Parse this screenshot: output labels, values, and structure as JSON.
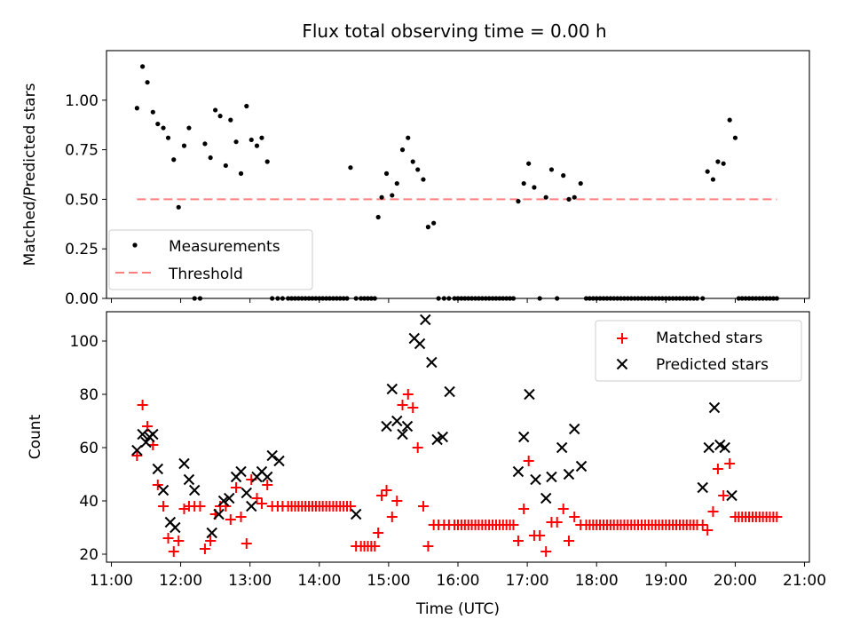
{
  "figure": {
    "title": "Flux total observing time = 0.00 h",
    "xlabel": "Time (UTC)"
  },
  "chart_data": [
    {
      "type": "scatter",
      "ylabel": "Matched/Predicted stars",
      "xlim": [
        10.93,
        21.07
      ],
      "ylim": [
        0.0,
        1.25
      ],
      "yticks": [
        0.0,
        0.25,
        0.5,
        0.75,
        1.0
      ],
      "ytick_labels": [
        "0.00",
        "0.25",
        "0.50",
        "0.75",
        "1.00"
      ],
      "legend": {
        "placement": "lower-left",
        "entries": [
          {
            "label": "Measurements",
            "marker": "dot",
            "color": "#000000"
          },
          {
            "label": "Threshold",
            "marker": "dashed-line",
            "color": "#ff7f7f"
          }
        ]
      },
      "threshold": {
        "value": 0.5,
        "x_start": 11.37,
        "x_end": 20.6
      },
      "measurements": {
        "x": [
          11.37,
          11.45,
          11.52,
          11.6,
          11.67,
          11.75,
          11.82,
          11.9,
          11.97,
          12.05,
          12.12,
          12.2,
          12.28,
          12.35,
          12.43,
          12.5,
          12.57,
          12.65,
          12.72,
          12.8,
          12.87,
          12.95,
          13.02,
          13.1,
          13.17,
          13.25,
          13.32,
          13.4,
          13.47,
          13.55,
          13.6,
          13.65,
          13.7,
          13.75,
          13.8,
          13.85,
          13.9,
          13.95,
          14.0,
          14.05,
          14.1,
          14.15,
          14.2,
          14.25,
          14.3,
          14.35,
          14.4,
          14.45,
          14.53,
          14.6,
          14.65,
          14.7,
          14.75,
          14.8,
          14.85,
          14.9,
          14.97,
          15.05,
          15.12,
          15.2,
          15.28,
          15.35,
          15.42,
          15.5,
          15.57,
          15.65,
          15.72,
          15.8,
          15.87,
          15.95,
          16.0,
          16.05,
          16.1,
          16.15,
          16.2,
          16.25,
          16.3,
          16.35,
          16.4,
          16.45,
          16.5,
          16.55,
          16.6,
          16.65,
          16.7,
          16.75,
          16.8,
          16.87,
          16.95,
          17.02,
          17.1,
          17.18,
          17.27,
          17.35,
          17.43,
          17.52,
          17.6,
          17.68,
          17.77,
          17.85,
          17.9,
          17.95,
          18.0,
          18.05,
          18.1,
          18.15,
          18.2,
          18.25,
          18.3,
          18.35,
          18.4,
          18.45,
          18.5,
          18.55,
          18.6,
          18.65,
          18.7,
          18.75,
          18.8,
          18.85,
          18.9,
          18.95,
          19.0,
          19.05,
          19.1,
          19.15,
          19.2,
          19.25,
          19.3,
          19.35,
          19.4,
          19.45,
          19.53,
          19.6,
          19.68,
          19.75,
          19.83,
          19.92,
          20.0,
          20.05,
          20.1,
          20.15,
          20.2,
          20.25,
          20.3,
          20.35,
          20.4,
          20.45,
          20.5,
          20.55,
          20.6
        ],
        "y": [
          0.96,
          1.17,
          1.09,
          0.94,
          0.88,
          0.86,
          0.81,
          0.7,
          0.46,
          0.77,
          0.86,
          0.0,
          0.0,
          0.78,
          0.71,
          0.95,
          0.92,
          0.67,
          0.9,
          0.79,
          0.63,
          0.97,
          0.8,
          0.77,
          0.81,
          0.69,
          0.0,
          0.0,
          0.0,
          0.0,
          0.0,
          0.0,
          0.0,
          0.0,
          0.0,
          0.0,
          0.0,
          0.0,
          0.0,
          0.0,
          0.0,
          0.0,
          0.0,
          0.0,
          0.0,
          0.0,
          0.0,
          0.66,
          0.0,
          0.0,
          0.0,
          0.0,
          0.0,
          0.0,
          0.41,
          0.51,
          0.63,
          0.52,
          0.58,
          0.75,
          0.81,
          0.69,
          0.65,
          0.6,
          0.36,
          0.38,
          0.0,
          0.0,
          0.0,
          0.0,
          0.0,
          0.0,
          0.0,
          0.0,
          0.0,
          0.0,
          0.0,
          0.0,
          0.0,
          0.0,
          0.0,
          0.0,
          0.0,
          0.0,
          0.0,
          0.0,
          0.0,
          0.49,
          0.58,
          0.68,
          0.56,
          0.0,
          0.51,
          0.65,
          0.0,
          0.62,
          0.5,
          0.51,
          0.58,
          0.0,
          0.0,
          0.0,
          0.0,
          0.0,
          0.0,
          0.0,
          0.0,
          0.0,
          0.0,
          0.0,
          0.0,
          0.0,
          0.0,
          0.0,
          0.0,
          0.0,
          0.0,
          0.0,
          0.0,
          0.0,
          0.0,
          0.0,
          0.0,
          0.0,
          0.0,
          0.0,
          0.0,
          0.0,
          0.0,
          0.0,
          0.0,
          0.0,
          0.0,
          0.64,
          0.6,
          0.69,
          0.68,
          0.9,
          0.81,
          0.0,
          0.0,
          0.0,
          0.0,
          0.0,
          0.0,
          0.0,
          0.0,
          0.0,
          0.0,
          0.0,
          0.0
        ]
      }
    },
    {
      "type": "scatter",
      "ylabel": "Count",
      "xlim": [
        10.93,
        21.07
      ],
      "ylim": [
        17.0,
        111.0
      ],
      "yticks": [
        20,
        40,
        60,
        80,
        100
      ],
      "ytick_labels": [
        "20",
        "40",
        "60",
        "80",
        "100"
      ],
      "xticks": [
        11,
        12,
        13,
        14,
        15,
        16,
        17,
        18,
        19,
        20,
        21
      ],
      "xtick_labels": [
        "11:00",
        "12:00",
        "13:00",
        "14:00",
        "15:00",
        "16:00",
        "17:00",
        "18:00",
        "19:00",
        "20:00",
        "21:00"
      ],
      "legend": {
        "placement": "upper-right",
        "entries": [
          {
            "label": "Matched stars",
            "marker": "plus",
            "color": "#ff0000"
          },
          {
            "label": "Predicted stars",
            "marker": "x",
            "color": "#000000"
          }
        ]
      },
      "matched": {
        "x": [
          11.37,
          11.45,
          11.52,
          11.6,
          11.67,
          11.75,
          11.82,
          11.9,
          11.97,
          12.05,
          12.12,
          12.2,
          12.28,
          12.35,
          12.43,
          12.5,
          12.57,
          12.65,
          12.72,
          12.8,
          12.87,
          12.95,
          13.02,
          13.1,
          13.17,
          13.25,
          13.32,
          13.4,
          13.47,
          13.55,
          13.6,
          13.65,
          13.7,
          13.75,
          13.8,
          13.85,
          13.9,
          13.95,
          14.0,
          14.05,
          14.1,
          14.15,
          14.2,
          14.25,
          14.3,
          14.35,
          14.4,
          14.45,
          14.53,
          14.6,
          14.65,
          14.7,
          14.75,
          14.8,
          14.85,
          14.9,
          14.97,
          15.05,
          15.12,
          15.2,
          15.28,
          15.35,
          15.42,
          15.5,
          15.57,
          15.65,
          15.72,
          15.8,
          15.87,
          15.95,
          16.0,
          16.05,
          16.1,
          16.15,
          16.2,
          16.25,
          16.3,
          16.35,
          16.4,
          16.45,
          16.5,
          16.55,
          16.6,
          16.65,
          16.7,
          16.75,
          16.8,
          16.87,
          16.95,
          17.02,
          17.1,
          17.18,
          17.27,
          17.35,
          17.43,
          17.52,
          17.6,
          17.68,
          17.77,
          17.85,
          17.9,
          17.95,
          18.0,
          18.05,
          18.1,
          18.15,
          18.2,
          18.25,
          18.3,
          18.35,
          18.4,
          18.45,
          18.5,
          18.55,
          18.6,
          18.65,
          18.7,
          18.75,
          18.8,
          18.85,
          18.9,
          18.95,
          19.0,
          19.05,
          19.1,
          19.15,
          19.2,
          19.25,
          19.3,
          19.35,
          19.4,
          19.45,
          19.53,
          19.6,
          19.68,
          19.75,
          19.83,
          19.92,
          20.0,
          20.05,
          20.1,
          20.15,
          20.2,
          20.25,
          20.3,
          20.35,
          20.4,
          20.45,
          20.5,
          20.55,
          20.6
        ],
        "y": [
          57,
          76,
          68,
          61,
          46,
          38,
          26,
          21,
          25,
          37,
          38,
          38,
          38,
          22,
          25,
          35,
          38,
          38,
          33,
          45,
          34,
          24,
          48,
          41,
          39,
          46,
          38,
          38,
          38,
          38,
          38,
          38,
          38,
          38,
          38,
          38,
          38,
          38,
          38,
          38,
          38,
          38,
          38,
          38,
          38,
          38,
          38,
          38,
          23,
          23,
          23,
          23,
          23,
          23,
          28,
          42,
          44,
          34,
          40,
          76,
          80,
          75,
          60,
          38,
          23,
          31,
          31,
          31,
          31,
          31,
          31,
          31,
          31,
          31,
          31,
          31,
          31,
          31,
          31,
          31,
          31,
          31,
          31,
          31,
          31,
          31,
          31,
          25,
          37,
          55,
          27,
          27,
          21,
          32,
          32,
          37,
          25,
          34,
          31,
          31,
          31,
          31,
          31,
          31,
          31,
          31,
          31,
          31,
          31,
          31,
          31,
          31,
          31,
          31,
          31,
          31,
          31,
          31,
          31,
          31,
          31,
          31,
          31,
          31,
          31,
          31,
          31,
          31,
          31,
          31,
          31,
          31,
          31,
          29,
          36,
          52,
          42,
          54,
          34,
          34,
          34,
          34,
          34,
          34,
          34,
          34,
          34,
          34,
          34,
          34,
          34
        ]
      },
      "predicted": {
        "x": [
          11.37,
          11.45,
          11.5,
          11.55,
          11.6,
          11.67,
          11.75,
          11.85,
          11.92,
          12.05,
          12.12,
          12.2,
          12.45,
          12.55,
          12.62,
          12.7,
          12.8,
          12.87,
          12.95,
          13.02,
          13.1,
          13.17,
          13.25,
          13.32,
          13.42,
          14.53,
          14.97,
          15.05,
          15.12,
          15.2,
          15.27,
          15.37,
          15.45,
          15.53,
          15.62,
          15.7,
          15.78,
          15.88,
          16.87,
          16.95,
          17.03,
          17.12,
          17.27,
          17.35,
          17.5,
          17.6,
          17.68,
          17.78,
          19.53,
          19.62,
          19.7,
          19.78,
          19.85,
          19.95
        ],
        "y": [
          59,
          65,
          62,
          64,
          65,
          52,
          44,
          32,
          30,
          54,
          48,
          44,
          28,
          35,
          40,
          41,
          49,
          51,
          43,
          38,
          49,
          51,
          49,
          57,
          55,
          35,
          68,
          82,
          70,
          65,
          68,
          101,
          99,
          108,
          92,
          63,
          64,
          81,
          51,
          64,
          80,
          48,
          41,
          49,
          60,
          50,
          67,
          53,
          45,
          60,
          75,
          61,
          60,
          42
        ]
      }
    }
  ]
}
